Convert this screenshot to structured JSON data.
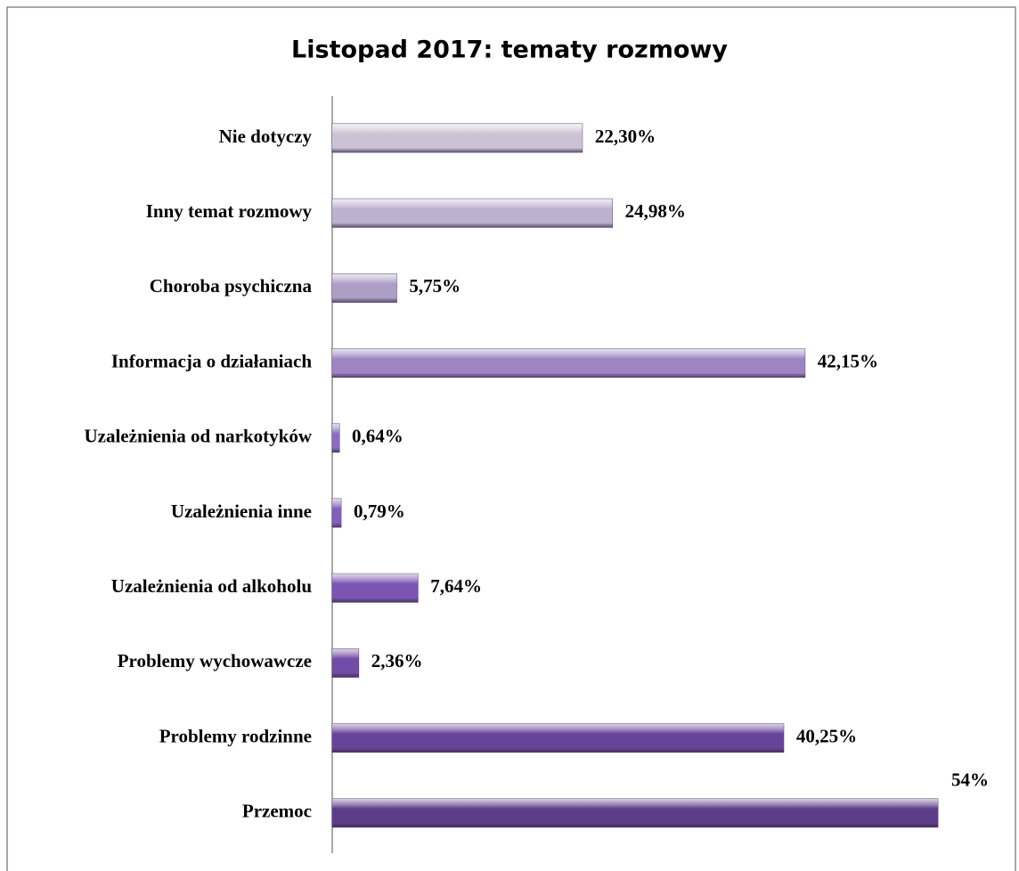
{
  "chart_data": {
    "type": "bar",
    "orientation": "horizontal",
    "title": "Listopad 2017: tematy rozmowy",
    "categories": [
      "Nie dotyczy",
      "Inny temat rozmowy",
      "Choroba psychiczna",
      "Informacja o działaniach",
      "Uzależnienia od narkotyków",
      "Uzależnienia inne",
      "Uzależnienia od alkoholu",
      "Problemy wychowawcze",
      "Problemy rodzinne",
      "Przemoc"
    ],
    "values": [
      22.3,
      24.98,
      5.75,
      42.15,
      0.64,
      0.79,
      7.64,
      2.36,
      40.25,
      54
    ],
    "value_labels": [
      "22,30%",
      "24,98%",
      "5,75%",
      "42,15%",
      "0,64%",
      "0,79%",
      "7,64%",
      "2,36%",
      "40,25%",
      "54%"
    ],
    "colors": [
      "#cbc3d5",
      "#bdb1cf",
      "#ad9ec6",
      "#9d85c4",
      "#8c6cc0",
      "#8160b8",
      "#7b55b4",
      "#724ca6",
      "#67449a",
      "#5d3d8a"
    ],
    "xlim": [
      0,
      54
    ]
  }
}
